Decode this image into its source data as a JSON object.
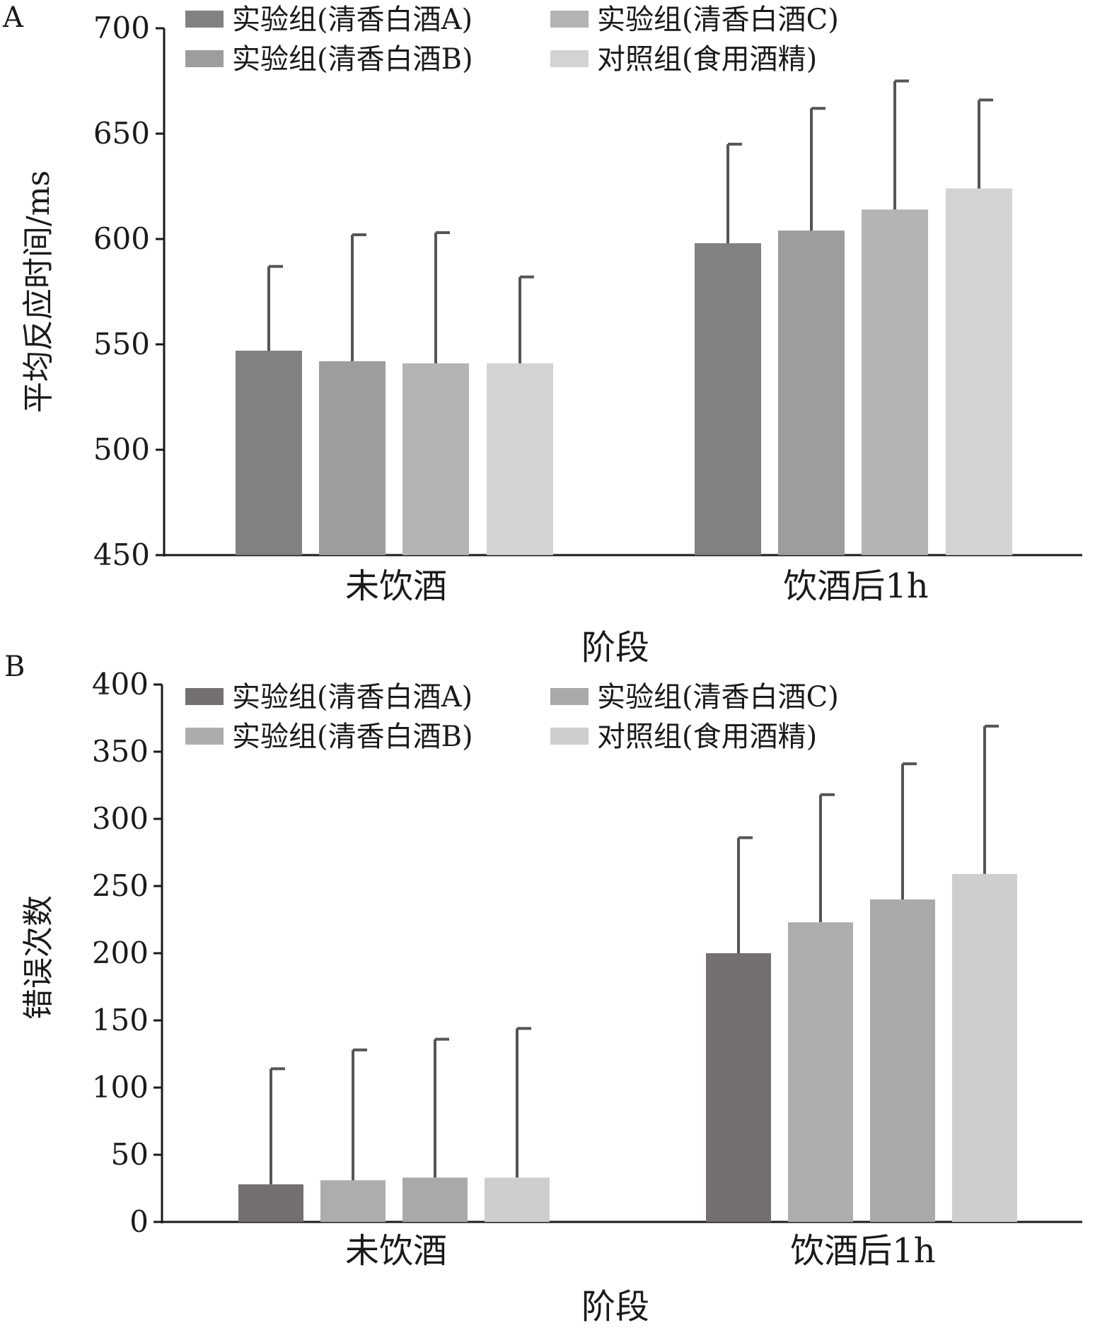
{
  "chart_data": [
    {
      "type": "bar",
      "panel": "A",
      "categories": [
        "未饮酒",
        "饮酒后1h"
      ],
      "series": [
        {
          "name": "实验组(清香白酒A)",
          "values": [
            547,
            598
          ],
          "error": [
            40,
            47
          ],
          "color": "#818181"
        },
        {
          "name": "实验组(清香白酒B)",
          "values": [
            542,
            604
          ],
          "error": [
            60,
            58
          ],
          "color": "#9d9d9d"
        },
        {
          "name": "实验组(清香白酒C)",
          "values": [
            541,
            614
          ],
          "error": [
            62,
            61
          ],
          "color": "#b4b4b4"
        },
        {
          "name": "对照组(食用酒精)",
          "values": [
            541,
            624
          ],
          "error": [
            41,
            42
          ],
          "color": "#d3d3d3"
        }
      ],
      "xlabel": "阶段",
      "ylabel": "平均反应时间/ms",
      "ylim": [
        450,
        700
      ],
      "yticks": [
        "450",
        "500",
        "550",
        "600",
        "650",
        "700"
      ],
      "grid": false,
      "legend": "top"
    },
    {
      "type": "bar",
      "panel": "B",
      "categories": [
        "未饮酒",
        "饮酒后1h"
      ],
      "series": [
        {
          "name": "实验组(清香白酒A)",
          "values": [
            28,
            200
          ],
          "error": [
            86,
            86
          ],
          "color": "#747070"
        },
        {
          "name": "实验组(清香白酒B)",
          "values": [
            31,
            223
          ],
          "error": [
            97,
            95
          ],
          "color": "#afacac"
        },
        {
          "name": "实验组(清香白酒C)",
          "values": [
            33,
            240
          ],
          "error": [
            103,
            101
          ],
          "color": "#a9a9a9"
        },
        {
          "name": "对照组(食用酒精)",
          "values": [
            33,
            259
          ],
          "error": [
            111,
            110
          ],
          "color": "#cfcdcd"
        }
      ],
      "xlabel": "阶段",
      "ylabel": "错误次数",
      "ylim": [
        0,
        400
      ],
      "yticks": [
        "0",
        "50",
        "100",
        "150",
        "200",
        "250",
        "300",
        "350",
        "400"
      ],
      "grid": false,
      "legend": "top"
    }
  ]
}
